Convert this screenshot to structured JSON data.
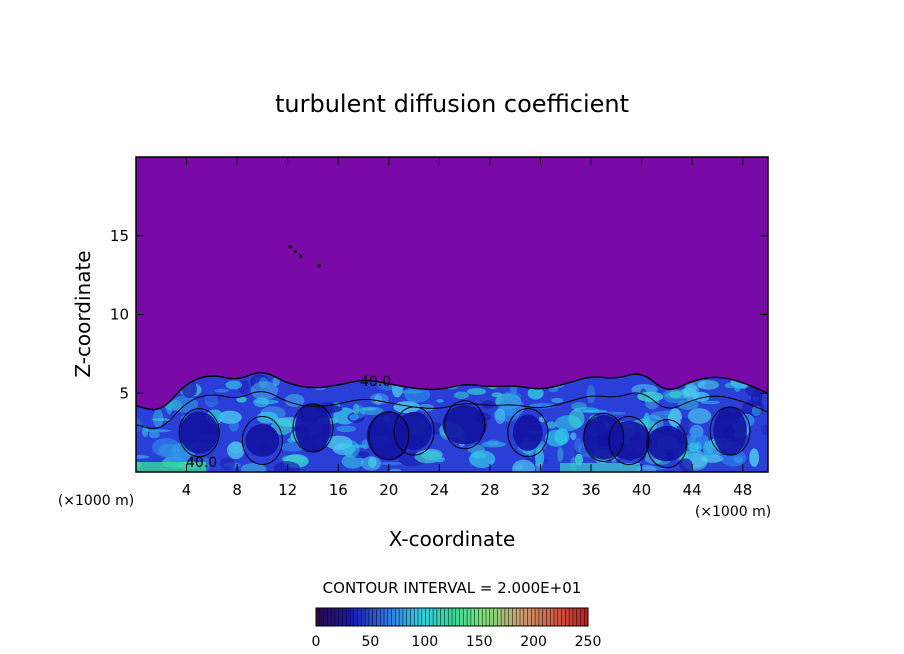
{
  "chart_data": {
    "type": "heatmap",
    "title": "turbulent diffusion coefficient",
    "xlabel": "X-coordinate",
    "ylabel": "Z-coordinate",
    "x_unit_left": "(×1000 m)",
    "x_unit_right": "(×1000 m)",
    "xlim": [
      0,
      50
    ],
    "ylim": [
      0,
      20
    ],
    "x_ticks": [
      4,
      8,
      12,
      16,
      20,
      24,
      28,
      32,
      36,
      40,
      44,
      48
    ],
    "y_ticks": [
      5,
      10,
      15
    ],
    "contour_interval_label": "CONTOUR INTERVAL = 2.000E+01",
    "contour_labels": [
      "40.0",
      "40.0"
    ],
    "colorbar": {
      "min": 0,
      "max": 250,
      "ticks": [
        0,
        50,
        100,
        150,
        200,
        250
      ],
      "colors": [
        "#2a0a4a",
        "#1b1bb0",
        "#2f6fe0",
        "#33c7e6",
        "#36d89a",
        "#7fe07a",
        "#c8a070",
        "#d0604a",
        "#c02020"
      ]
    },
    "background_color": "#7a0aa8",
    "turbulent_layer": {
      "top_profile_x": [
        0,
        2,
        4,
        6,
        8,
        10,
        12,
        14,
        16,
        18,
        20,
        22,
        24,
        26,
        28,
        30,
        32,
        34,
        36,
        38,
        40,
        42,
        44,
        46,
        48,
        50
      ],
      "top_profile_z": [
        4.2,
        3.8,
        5.7,
        6.2,
        5.8,
        6.5,
        5.6,
        5.3,
        5.5,
        5.9,
        5.6,
        5.3,
        5.2,
        5.6,
        5.4,
        5.5,
        5.2,
        5.6,
        6.1,
        5.9,
        6.4,
        5.0,
        5.8,
        6.1,
        5.7,
        5.0
      ],
      "core_x": [
        5,
        10,
        14,
        20,
        22,
        26,
        31,
        37,
        39,
        42,
        47
      ],
      "core_z": [
        2.5,
        2.0,
        2.8,
        2.3,
        2.6,
        3.0,
        2.5,
        2.2,
        2.0,
        1.8,
        2.6
      ]
    }
  }
}
